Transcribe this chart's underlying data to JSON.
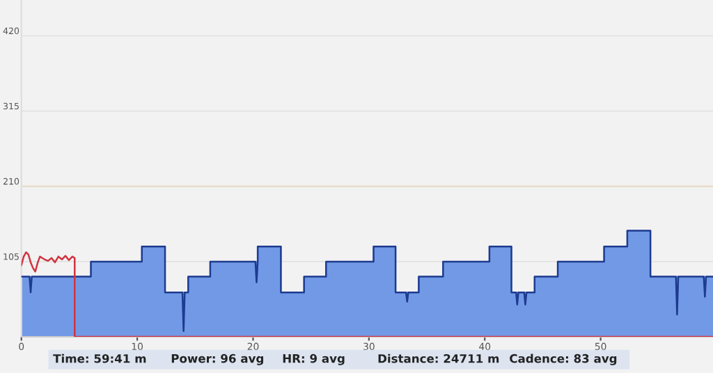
{
  "chart_data": {
    "type": "area",
    "xlim": [
      0,
      59.7
    ],
    "ylim": [
      0,
      470
    ],
    "xticks": [
      0,
      10,
      20,
      30,
      40,
      50
    ],
    "yticks": [
      105,
      210,
      315,
      420
    ],
    "grid": "y",
    "legend": false,
    "series": [
      {
        "color": "#7299e6",
        "x": [
          0,
          6,
          6,
          10.4,
          10.4,
          12.4,
          12.4,
          14.4,
          14.4,
          16.3,
          16.3,
          20.4,
          20.4,
          22.4,
          22.4,
          24.4,
          24.4,
          26.3,
          26.3,
          30.4,
          30.4,
          32.3,
          32.3,
          34.3,
          34.3,
          36.4,
          36.4,
          40.4,
          40.4,
          42.3,
          42.3,
          44.3,
          44.3,
          46.3,
          46.3,
          50.3,
          50.3,
          52.3,
          52.3,
          54.3,
          54.3,
          59.7
        ],
        "values": [
          84,
          84,
          105,
          105,
          126,
          126,
          62,
          62,
          84,
          84,
          105,
          105,
          126,
          126,
          62,
          62,
          84,
          84,
          105,
          105,
          126,
          126,
          62,
          62,
          84,
          84,
          105,
          105,
          126,
          126,
          62,
          62,
          84,
          84,
          105,
          105,
          126,
          126,
          148,
          148,
          84,
          84
        ]
      },
      {
        "type": "line",
        "color": "#1d3b8f",
        "x": [
          0,
          0.7,
          0.8,
          0.9,
          6,
          6,
          10.4,
          10.4,
          12.4,
          12.4,
          13.9,
          14,
          14.1,
          14.4,
          14.4,
          16.3,
          16.3,
          20.2,
          20.3,
          20.4,
          20.4,
          22.4,
          22.4,
          24.4,
          24.4,
          26.3,
          26.3,
          30.4,
          30.4,
          32.3,
          32.3,
          33.2,
          33.3,
          33.4,
          34.3,
          34.3,
          36.4,
          36.4,
          40.4,
          40.4,
          42.3,
          42.3,
          42.7,
          42.8,
          42.9,
          43.4,
          43.5,
          43.6,
          44.3,
          44.3,
          46.3,
          46.3,
          50.3,
          50.3,
          52.3,
          52.3,
          54.3,
          54.3,
          56.5,
          56.6,
          56.7,
          58.9,
          59,
          59.1,
          59.7
        ],
        "values": [
          84,
          84,
          62,
          84,
          84,
          105,
          105,
          126,
          126,
          62,
          62,
          8,
          62,
          62,
          84,
          84,
          105,
          105,
          76,
          105,
          126,
          126,
          62,
          62,
          84,
          84,
          105,
          105,
          126,
          126,
          62,
          62,
          49,
          62,
          62,
          84,
          84,
          105,
          105,
          126,
          126,
          62,
          62,
          45,
          62,
          62,
          45,
          62,
          62,
          84,
          84,
          105,
          105,
          126,
          126,
          148,
          148,
          84,
          84,
          31,
          84,
          84,
          56,
          84,
          84
        ]
      },
      {
        "type": "line",
        "color": "#d0343f",
        "x": [
          0,
          0.2,
          0.4,
          0.6,
          0.8,
          1.0,
          1.2,
          1.4,
          1.6,
          1.8,
          2.0,
          2.3,
          2.6,
          2.9,
          3.2,
          3.5,
          3.8,
          4.1,
          4.4,
          4.6,
          4.6,
          59.7
        ],
        "values": [
          100,
          112,
          118,
          115,
          104,
          96,
          91,
          103,
          112,
          110,
          108,
          106,
          110,
          104,
          112,
          108,
          113,
          107,
          112,
          110,
          0,
          0
        ]
      }
    ],
    "ref_lines": [
      {
        "axis": "y",
        "value": 210,
        "color": "#f3c27a"
      }
    ],
    "annotations": [
      "Time: 59:41 m",
      "Power: 96 avg",
      "HR: 9 avg",
      "Distance: 24711 m",
      "Cadence: 83 avg"
    ]
  }
}
